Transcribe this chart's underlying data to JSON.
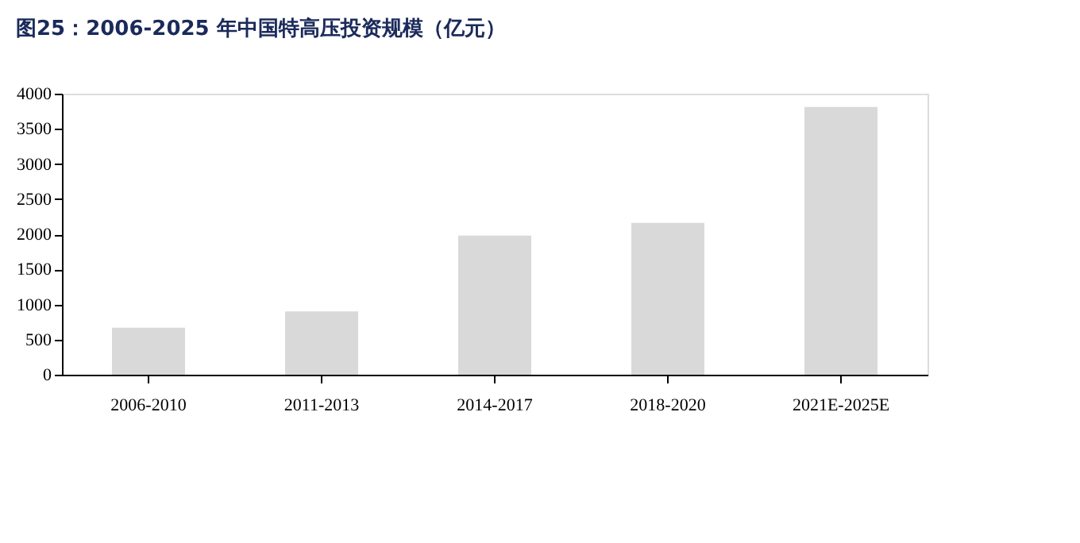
{
  "chart_data": {
    "type": "bar",
    "title": "图25：2006-2025 年中国特高压投资规模（亿元）",
    "categories": [
      "2006-2010",
      "2011-2013",
      "2014-2017",
      "2018-2020",
      "2021E-2025E"
    ],
    "values": [
      670,
      900,
      1980,
      2160,
      3810
    ],
    "color": "#d9d9d9",
    "ylim": [
      0,
      4000
    ],
    "yticks": [
      0,
      500,
      1000,
      1500,
      2000,
      2500,
      3000,
      3500,
      4000
    ],
    "grid": false
  }
}
